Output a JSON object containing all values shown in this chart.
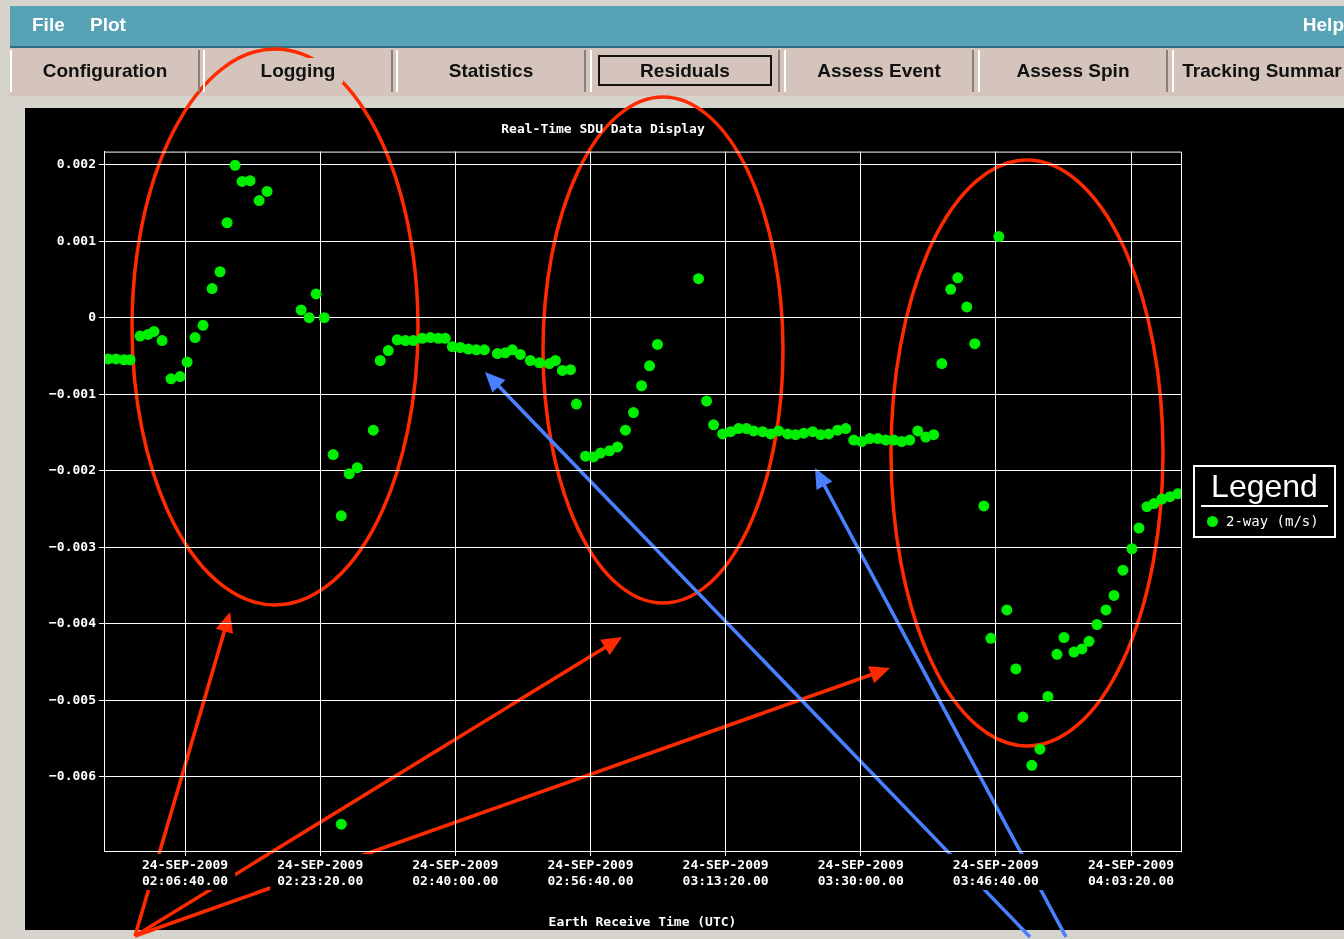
{
  "chart_data": {
    "type": "scatter",
    "title": "Real-Time SDU Data Display",
    "xlabel": "Earth Receive Time (UTC)",
    "legend_title": "Legend",
    "legend": "right",
    "grid": true,
    "marker": "circle",
    "xlim": [
      "2009-09-24T01:56:40",
      "2009-09-24T04:09:30"
    ],
    "xticks": [
      {
        "value": "2009-09-24T02:06:40",
        "label": "24-SEP-2009\n02:06:40.00"
      },
      {
        "value": "2009-09-24T02:23:20",
        "label": "24-SEP-2009\n02:23:20.00"
      },
      {
        "value": "2009-09-24T02:40:00",
        "label": "24-SEP-2009\n02:40:00.00"
      },
      {
        "value": "2009-09-24T02:56:40",
        "label": "24-SEP-2009\n02:56:40.00"
      },
      {
        "value": "2009-09-24T03:13:20",
        "label": "24-SEP-2009\n03:13:20.00"
      },
      {
        "value": "2009-09-24T03:30:00",
        "label": "24-SEP-2009\n03:30:00.00"
      },
      {
        "value": "2009-09-24T03:46:40",
        "label": "24-SEP-2009\n03:46:40.00"
      },
      {
        "value": "2009-09-24T04:03:20",
        "label": "24-SEP-2009\n04:03:20.00"
      }
    ],
    "ylim": [
      -0.00697,
      0.00217
    ],
    "yticks": [
      {
        "value": -0.006,
        "label": "−0.006"
      },
      {
        "value": -0.005,
        "label": "−0.005"
      },
      {
        "value": -0.004,
        "label": "−0.004"
      },
      {
        "value": -0.003,
        "label": "−0.003"
      },
      {
        "value": -0.002,
        "label": "−0.002"
      },
      {
        "value": -0.001,
        "label": "−0.001"
      },
      0,
      0.001,
      0.002
    ],
    "annotations": [
      "File",
      "Plot",
      "Help",
      "Configuration",
      "Logging",
      "Statistics",
      "Residuals",
      "Assess Event",
      "Assess Spin",
      "Tracking Summar"
    ],
    "series": [
      {
        "name": "2-way (m/s)",
        "color": "#00ee00",
        "x": [
          "2009-09-24T01:57:10",
          "2009-09-24T01:58:09",
          "2009-09-24T01:59:08",
          "2009-09-24T01:59:53",
          "2009-09-24T02:01:07",
          "2009-09-24T02:02:06",
          "2009-09-24T02:02:50",
          "2009-09-24T02:03:50",
          "2009-09-24T02:04:56",
          "2009-09-24T02:06:03",
          "2009-09-24T02:06:55",
          "2009-09-24T02:07:54",
          "2009-09-24T02:08:53",
          "2009-09-24T02:10:00",
          "2009-09-24T02:10:59",
          "2009-09-24T02:11:51",
          "2009-09-24T02:12:50",
          "2009-09-24T02:13:42",
          "2009-09-24T02:14:41",
          "2009-09-24T02:15:48",
          "2009-09-24T02:16:47",
          "2009-09-24T02:20:59",
          "2009-09-24T02:21:58",
          "2009-09-24T02:22:50",
          "2009-09-24T02:23:50",
          "2009-09-24T02:24:56",
          "2009-09-24T02:25:56",
          "2009-09-24T02:25:56",
          "2009-09-24T02:26:55",
          "2009-09-24T02:27:54",
          "2009-09-24T02:29:53",
          "2009-09-24T02:30:44",
          "2009-09-24T02:31:44",
          "2009-09-24T02:32:50",
          "2009-09-24T02:33:50",
          "2009-09-24T02:34:49",
          "2009-09-24T02:35:55",
          "2009-09-24T02:36:55",
          "2009-09-24T02:37:54",
          "2009-09-24T02:38:46",
          "2009-09-24T02:39:38",
          "2009-09-24T02:40:37",
          "2009-09-24T02:41:36",
          "2009-09-24T02:42:35",
          "2009-09-24T02:43:35",
          "2009-09-24T02:45:11",
          "2009-09-24T02:46:10",
          "2009-09-24T02:47:02",
          "2009-09-24T02:48:01",
          "2009-09-24T02:49:15",
          "2009-09-24T02:50:22",
          "2009-09-24T02:51:36",
          "2009-09-24T02:52:21",
          "2009-09-24T02:53:12",
          "2009-09-24T02:54:12",
          "2009-09-24T02:54:56",
          "2009-09-24T02:56:03",
          "2009-09-24T02:57:02",
          "2009-09-24T02:57:54",
          "2009-09-24T02:59:01",
          "2009-09-24T03:00:00",
          "2009-09-24T03:00:59",
          "2009-09-24T03:01:58",
          "2009-09-24T03:02:58",
          "2009-09-24T03:03:57",
          "2009-09-24T03:04:56",
          "2009-09-24T03:10:00",
          "2009-09-24T03:10:59",
          "2009-09-24T03:11:51",
          "2009-09-24T03:12:58",
          "2009-09-24T03:13:57",
          "2009-09-24T03:14:56",
          "2009-09-24T03:15:55",
          "2009-09-24T03:16:47",
          "2009-09-24T03:17:54",
          "2009-09-24T03:18:53",
          "2009-09-24T03:19:52",
          "2009-09-24T03:20:59",
          "2009-09-24T03:21:58",
          "2009-09-24T03:22:58",
          "2009-09-24T03:24:04",
          "2009-09-24T03:25:03",
          "2009-09-24T03:26:03",
          "2009-09-24T03:27:09",
          "2009-09-24T03:28:09",
          "2009-09-24T03:29:08",
          "2009-09-24T03:30:07",
          "2009-09-24T03:31:06",
          "2009-09-24T03:32:06",
          "2009-09-24T03:33:05",
          "2009-09-24T03:34:04",
          "2009-09-24T03:35:03",
          "2009-09-24T03:36:03",
          "2009-09-24T03:37:02",
          "2009-09-24T03:38:01",
          "2009-09-24T03:39:00",
          "2009-09-24T03:40:00",
          "2009-09-24T03:41:06",
          "2009-09-24T03:41:58",
          "2009-09-24T03:43:05",
          "2009-09-24T03:44:04",
          "2009-09-24T03:45:11",
          "2009-09-24T03:46:03",
          "2009-09-24T03:47:02",
          "2009-09-24T03:48:01",
          "2009-09-24T03:49:08",
          "2009-09-24T03:50:00",
          "2009-09-24T03:51:06",
          "2009-09-24T03:52:06",
          "2009-09-24T03:53:05",
          "2009-09-24T03:54:12",
          "2009-09-24T03:55:04",
          "2009-09-24T03:56:18",
          "2009-09-24T03:57:17",
          "2009-09-24T03:58:09",
          "2009-09-24T03:59:08",
          "2009-09-24T04:00:15",
          "2009-09-24T04:01:14",
          "2009-09-24T04:02:20",
          "2009-09-24T04:03:27",
          "2009-09-24T04:04:19",
          "2009-09-24T04:05:18",
          "2009-09-24T04:06:10",
          "2009-09-24T04:07:09",
          "2009-09-24T04:08:09",
          "2009-09-24T04:09:08"
        ],
        "values": [
          -0.00054,
          -0.00054,
          -0.00055,
          -0.00055,
          -0.00024,
          -0.00022,
          -0.00018,
          -0.0003,
          -0.0008,
          -0.00077,
          -0.00058,
          -0.00026,
          -0.0001,
          0.00038,
          0.0006,
          0.00124,
          0.00199,
          0.00178,
          0.00179,
          0.00153,
          0.00165,
          0.0001,
          0,
          0.00031,
          0,
          -0.00179,
          -0.00259,
          -0.00662,
          -0.00204,
          -0.00196,
          -0.00147,
          -0.00056,
          -0.00043,
          -0.00029,
          -0.0003,
          -0.0003,
          -0.00027,
          -0.00026,
          -0.00027,
          -0.00027,
          -0.00038,
          -0.00039,
          -0.00041,
          -0.00042,
          -0.00042,
          -0.00047,
          -0.00046,
          -0.00042,
          -0.00048,
          -0.00056,
          -0.00059,
          -0.0006,
          -0.00056,
          -0.00069,
          -0.00068,
          -0.00113,
          -0.00181,
          -0.00182,
          -0.00177,
          -0.00174,
          -0.00169,
          -0.00147,
          -0.00124,
          -0.00089,
          -0.00063,
          -0.00035,
          0.00051,
          -0.00109,
          -0.0014,
          -0.00152,
          -0.00149,
          -0.00145,
          -0.00145,
          -0.00148,
          -0.00149,
          -0.00152,
          -0.00148,
          -0.00152,
          -0.00153,
          -0.00151,
          -0.00149,
          -0.00153,
          -0.00152,
          -0.00147,
          -0.00145,
          -0.0016,
          -0.00162,
          -0.00158,
          -0.00158,
          -0.0016,
          -0.0016,
          -0.00162,
          -0.0016,
          -0.00148,
          -0.00156,
          -0.00153,
          -0.0006,
          0.00037,
          0.00052,
          0.00014,
          -0.00034,
          -0.00246,
          -0.00419,
          0.00106,
          -0.00382,
          -0.00459,
          -0.00522,
          -0.00585,
          -0.00564,
          -0.00495,
          -0.0044,
          -0.00418,
          -0.00437,
          -0.00433,
          -0.00423,
          -0.00401,
          -0.00382,
          -0.00363,
          -0.0033,
          -0.00302,
          -0.00275,
          -0.00247,
          -0.00243,
          -0.00237,
          -0.00234,
          -0.0023
        ]
      }
    ]
  }
}
